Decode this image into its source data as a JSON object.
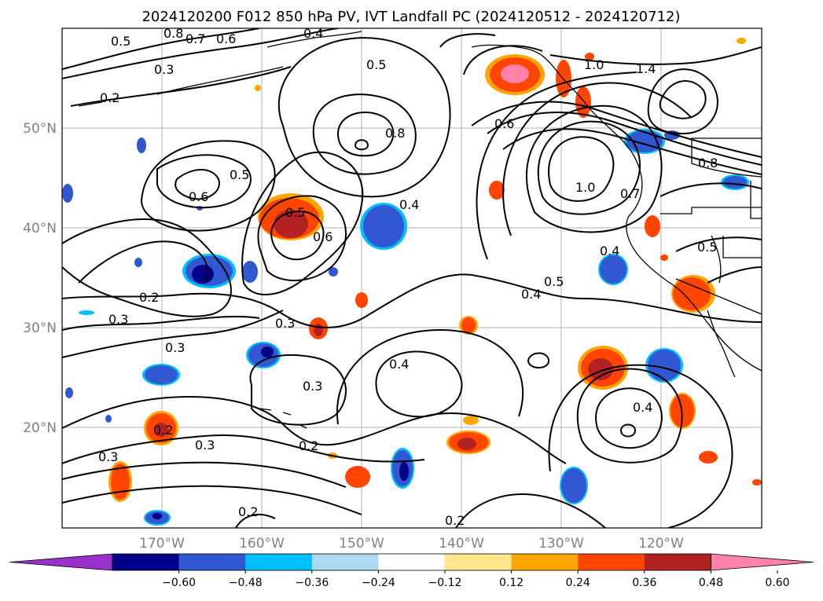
{
  "title": "2024120200 F012 850 hPa PV, IVT Landfall PC (2024120512 - 2024120712)",
  "lon_labels": [
    "170°W",
    "160°W",
    "150°W",
    "140°W",
    "130°W",
    "120°W"
  ],
  "lat_labels": [
    "50°N",
    "40°N",
    "30°N",
    "20°N"
  ],
  "colorbar": {
    "ticks": [
      "−0.60",
      "−0.48",
      "−0.36",
      "−0.24",
      "−0.12",
      "0.12",
      "0.24",
      "0.36",
      "0.48",
      "0.60"
    ],
    "colors": [
      "#9932cc",
      "#00008b",
      "#3158d0",
      "#00bfff",
      "#add8f0",
      "#ffffff",
      "#ffe68c",
      "#ffa500",
      "#ff4500",
      "#b22222",
      "#ff82ab"
    ]
  },
  "contour_labels": [
    "0.8",
    "0.7",
    "0.6",
    "0.5",
    "0.3",
    "0.2",
    "0.6",
    "0.5",
    "0.5",
    "0.8",
    "0.5",
    "0.6",
    "0.4",
    "0.4",
    "0.2",
    "0.3",
    "0.3",
    "0.3",
    "0.3",
    "0.2",
    "0.3",
    "0.2",
    "0.4",
    "0.5",
    "0.4",
    "0.2",
    "0.3",
    "0.6",
    "1.0",
    "1.4",
    "1.0",
    "0.7",
    "0.4",
    "0.5",
    "0.4",
    "0.8",
    "0.2"
  ]
}
